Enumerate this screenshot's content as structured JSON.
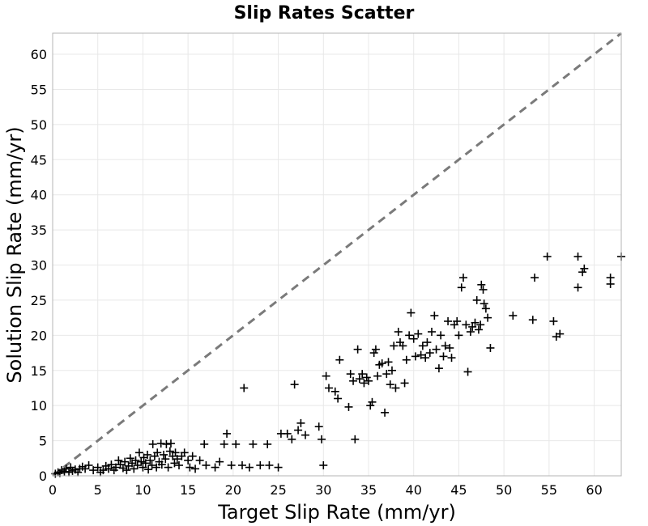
{
  "chart_data": {
    "type": "scatter",
    "title": "Slip Rates Scatter",
    "xlabel": "Target Slip Rate (mm/yr)",
    "ylabel": "Solution Slip Rate (mm/yr)",
    "xlim": [
      0,
      63
    ],
    "ylim": [
      0,
      63
    ],
    "xticks": [
      0,
      5,
      10,
      15,
      20,
      25,
      30,
      35,
      40,
      45,
      50,
      55,
      60
    ],
    "yticks": [
      0,
      5,
      10,
      15,
      20,
      25,
      30,
      35,
      40,
      45,
      50,
      55,
      60
    ],
    "grid": true,
    "marker": "plus",
    "colors": {
      "points": "#000000",
      "reference_line": "#7a7a7a",
      "grid": "#e8e8e8"
    },
    "reference_line": {
      "style": "dashed",
      "from": [
        0,
        0
      ],
      "to": [
        63,
        63
      ]
    },
    "series": [
      {
        "points": [
          [
            0.3,
            0.3
          ],
          [
            0.6,
            0.5
          ],
          [
            0.8,
            0.4
          ],
          [
            1.0,
            0.8
          ],
          [
            1.3,
            0.6
          ],
          [
            1.5,
            1.0
          ],
          [
            1.8,
            0.5
          ],
          [
            2.0,
            1.2
          ],
          [
            2.2,
            0.7
          ],
          [
            2.5,
            0.9
          ],
          [
            2.8,
            0.5
          ],
          [
            3.0,
            1.0
          ],
          [
            3.3,
            1.3
          ],
          [
            3.6,
            1.0
          ],
          [
            4.0,
            1.5
          ],
          [
            4.5,
            0.8
          ],
          [
            5.0,
            1.2
          ],
          [
            5.3,
            0.5
          ],
          [
            5.6,
            0.8
          ],
          [
            5.9,
            1.4
          ],
          [
            6.2,
            1.0
          ],
          [
            6.5,
            1.6
          ],
          [
            6.8,
            0.8
          ],
          [
            7.0,
            1.2
          ],
          [
            7.3,
            2.2
          ],
          [
            7.5,
            1.6
          ],
          [
            7.8,
            1.1
          ],
          [
            8.0,
            2.0
          ],
          [
            8.2,
            0.8
          ],
          [
            8.4,
            1.4
          ],
          [
            8.6,
            2.5
          ],
          [
            8.8,
            1.8
          ],
          [
            9.0,
            1.0
          ],
          [
            9.2,
            2.2
          ],
          [
            9.4,
            1.5
          ],
          [
            9.6,
            3.3
          ],
          [
            9.8,
            2.0
          ],
          [
            10.0,
            1.2
          ],
          [
            10.1,
            2.6
          ],
          [
            10.3,
            1.8
          ],
          [
            10.5,
            3.0
          ],
          [
            10.6,
            0.9
          ],
          [
            10.8,
            2.2
          ],
          [
            11.0,
            1.5
          ],
          [
            11.1,
            4.5
          ],
          [
            11.3,
            2.8
          ],
          [
            11.5,
            1.2
          ],
          [
            11.6,
            3.3
          ],
          [
            11.8,
            2.0
          ],
          [
            12.0,
            4.6
          ],
          [
            12.1,
            1.6
          ],
          [
            12.3,
            3.0
          ],
          [
            12.5,
            2.4
          ],
          [
            12.6,
            4.5
          ],
          [
            12.8,
            1.2
          ],
          [
            13.0,
            3.5
          ],
          [
            13.1,
            4.6
          ],
          [
            13.3,
            2.8
          ],
          [
            13.5,
            1.8
          ],
          [
            13.6,
            3.3
          ],
          [
            13.8,
            2.4
          ],
          [
            14.0,
            1.5
          ],
          [
            14.3,
            2.8
          ],
          [
            14.6,
            3.3
          ],
          [
            15.0,
            2.2
          ],
          [
            15.2,
            1.2
          ],
          [
            15.5,
            2.8
          ],
          [
            15.8,
            1.0
          ],
          [
            16.3,
            2.2
          ],
          [
            16.8,
            4.5
          ],
          [
            17.0,
            1.5
          ],
          [
            18.0,
            1.2
          ],
          [
            18.5,
            2.0
          ],
          [
            19.0,
            4.5
          ],
          [
            19.3,
            6.0
          ],
          [
            19.8,
            1.5
          ],
          [
            20.3,
            4.5
          ],
          [
            21.0,
            1.5
          ],
          [
            21.2,
            12.5
          ],
          [
            21.8,
            1.2
          ],
          [
            22.2,
            4.5
          ],
          [
            23.0,
            1.5
          ],
          [
            23.8,
            4.5
          ],
          [
            24.0,
            1.5
          ],
          [
            25.0,
            1.2
          ],
          [
            25.3,
            6.0
          ],
          [
            26.0,
            6.0
          ],
          [
            26.5,
            5.2
          ],
          [
            26.8,
            13.0
          ],
          [
            27.2,
            6.5
          ],
          [
            27.5,
            7.5
          ],
          [
            28.0,
            5.8
          ],
          [
            29.5,
            7.0
          ],
          [
            29.8,
            5.2
          ],
          [
            30.0,
            1.5
          ],
          [
            30.3,
            14.2
          ],
          [
            30.6,
            12.5
          ],
          [
            31.3,
            12.0
          ],
          [
            31.6,
            11.0
          ],
          [
            31.8,
            16.5
          ],
          [
            32.8,
            9.8
          ],
          [
            33.0,
            14.5
          ],
          [
            33.3,
            13.5
          ],
          [
            33.5,
            5.2
          ],
          [
            33.8,
            18.0
          ],
          [
            34.0,
            13.8
          ],
          [
            34.3,
            14.5
          ],
          [
            34.5,
            13.2
          ],
          [
            34.8,
            14.0
          ],
          [
            35.0,
            13.5
          ],
          [
            35.2,
            10.0
          ],
          [
            35.4,
            10.5
          ],
          [
            35.6,
            17.5
          ],
          [
            35.8,
            18.0
          ],
          [
            36.0,
            14.2
          ],
          [
            36.2,
            15.8
          ],
          [
            36.5,
            16.0
          ],
          [
            36.8,
            9.0
          ],
          [
            37.0,
            14.5
          ],
          [
            37.2,
            16.2
          ],
          [
            37.4,
            13.0
          ],
          [
            37.6,
            15.0
          ],
          [
            37.8,
            18.5
          ],
          [
            38.0,
            12.5
          ],
          [
            38.3,
            20.5
          ],
          [
            38.5,
            19.0
          ],
          [
            38.8,
            18.5
          ],
          [
            39.0,
            13.2
          ],
          [
            39.2,
            16.5
          ],
          [
            39.5,
            20.0
          ],
          [
            39.7,
            23.2
          ],
          [
            40.0,
            19.5
          ],
          [
            40.2,
            17.0
          ],
          [
            40.5,
            20.2
          ],
          [
            40.8,
            17.2
          ],
          [
            41.0,
            18.5
          ],
          [
            41.3,
            16.8
          ],
          [
            41.5,
            19.0
          ],
          [
            41.8,
            17.5
          ],
          [
            42.0,
            20.5
          ],
          [
            42.3,
            22.8
          ],
          [
            42.5,
            18.0
          ],
          [
            42.8,
            15.3
          ],
          [
            43.0,
            20.0
          ],
          [
            43.3,
            17.0
          ],
          [
            43.5,
            18.5
          ],
          [
            43.8,
            22.0
          ],
          [
            44.0,
            18.2
          ],
          [
            44.2,
            16.8
          ],
          [
            44.5,
            21.5
          ],
          [
            44.8,
            22.0
          ],
          [
            45.0,
            20.0
          ],
          [
            45.3,
            26.8
          ],
          [
            45.5,
            28.2
          ],
          [
            45.8,
            21.5
          ],
          [
            46.0,
            14.8
          ],
          [
            46.3,
            20.5
          ],
          [
            46.5,
            21.2
          ],
          [
            46.8,
            21.8
          ],
          [
            47.0,
            25.0
          ],
          [
            47.2,
            20.8
          ],
          [
            47.4,
            21.5
          ],
          [
            47.5,
            27.2
          ],
          [
            47.7,
            26.5
          ],
          [
            47.8,
            24.5
          ],
          [
            48.0,
            23.8
          ],
          [
            48.2,
            22.5
          ],
          [
            48.5,
            18.2
          ],
          [
            51.0,
            22.8
          ],
          [
            53.2,
            22.2
          ],
          [
            53.4,
            28.2
          ],
          [
            54.8,
            31.2
          ],
          [
            55.5,
            22.0
          ],
          [
            55.8,
            19.8
          ],
          [
            56.2,
            20.2
          ],
          [
            58.2,
            31.2
          ],
          [
            58.2,
            26.8
          ],
          [
            58.7,
            29.0
          ],
          [
            58.9,
            29.5
          ],
          [
            61.8,
            28.2
          ],
          [
            61.8,
            27.3
          ],
          [
            63.0,
            31.2
          ]
        ]
      }
    ]
  }
}
